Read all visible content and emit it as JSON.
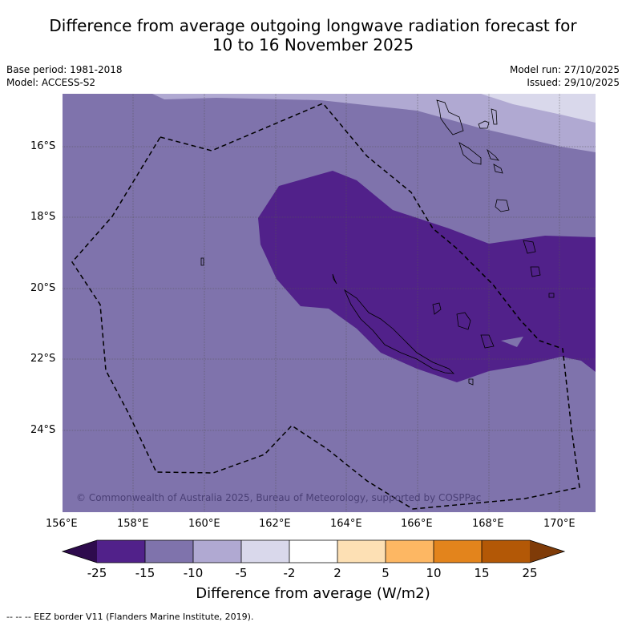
{
  "title_line1": "Difference from average outgoing longwave radiation forecast for",
  "title_line2": "10 to 16 November 2025",
  "base_period": "Base period: 1981-2018",
  "model": "Model: ACCESS-S2",
  "model_run": "Model run: 27/10/2025",
  "issued": "Issued: 29/10/2025",
  "lat_labels": [
    "16°S",
    "18°S",
    "20°S",
    "22°S",
    "24°S"
  ],
  "lon_labels": [
    "156°E",
    "158°E",
    "160°E",
    "162°E",
    "164°E",
    "166°E",
    "168°E",
    "170°E"
  ],
  "copyright": "© Commonwealth of Australia 2025, Bureau of Meteorology, supported by COSPPac",
  "colorbar": {
    "labels": [
      "-25",
      "-15",
      "-10",
      "-5",
      "-2",
      "2",
      "5",
      "10",
      "15",
      "25"
    ],
    "colors": [
      "#2e0b4d",
      "#51218a",
      "#7f73ac",
      "#b0a9d2",
      "#d9d8eb",
      "#ffffff",
      "#fde0b4",
      "#fdb763",
      "#e3841c",
      "#b35806",
      "#7f3b08"
    ],
    "title": "Difference from average (W/m2)"
  },
  "footer": "--  --  -- EEZ border V11 (Flanders Marine Institute, 2019)."
}
